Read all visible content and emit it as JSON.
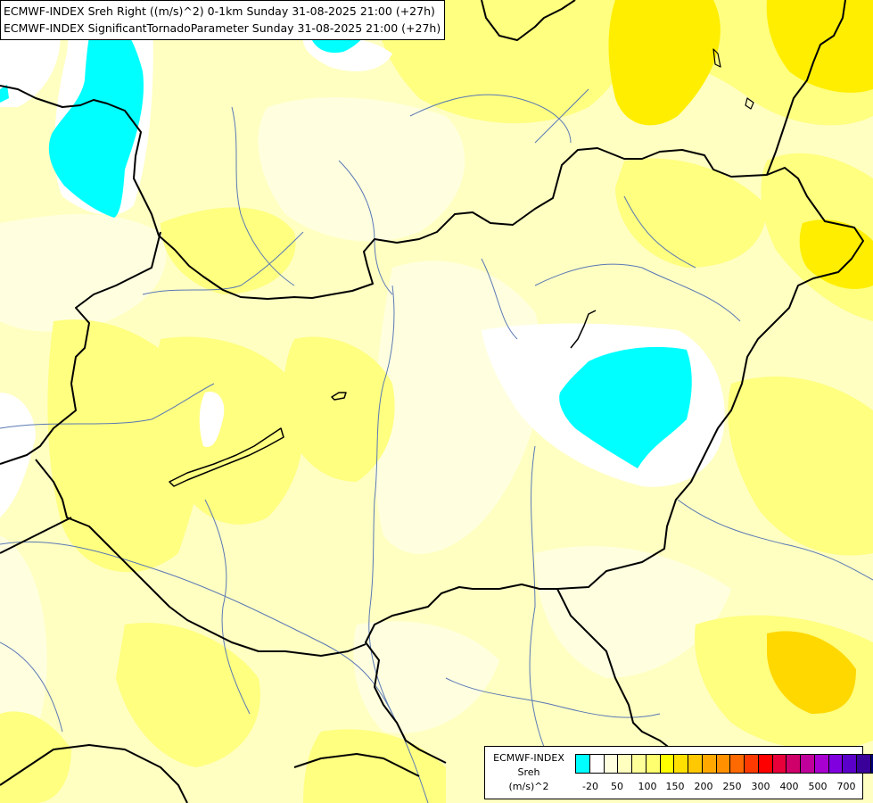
{
  "title": {
    "line1": "ECMWF-INDEX Sreh Right ((m/s)^2) 0-1km Sunday 31-08-2025 21:00 (+27h)",
    "line2": "ECMWF-INDEX SignificantTornadoParameter Sunday 31-08-2025 21:00 (+27h)"
  },
  "legend": {
    "source": "ECMWF-INDEX",
    "variable": "Sreh",
    "unit": "(m/s)^2",
    "colors": [
      "#00ffff",
      "#ffffff",
      "#ffffe0",
      "#ffffc0",
      "#ffff9a",
      "#ffff70",
      "#ffff00",
      "#ffe000",
      "#ffc800",
      "#ffa800",
      "#ff9000",
      "#ff6a00",
      "#ff3a00",
      "#ff0000",
      "#e8003a",
      "#d0006a",
      "#c0009a",
      "#a800d0",
      "#8000e0",
      "#5a00c8",
      "#3a009a",
      "#000080"
    ],
    "ticks": [
      "-20",
      "50",
      "100",
      "150",
      "200",
      "250",
      "300",
      "400",
      "500",
      "700"
    ]
  },
  "map_colors": {
    "background": "#ffffe0",
    "light_yellow": "#ffff9a",
    "yellow": "#ffff50",
    "strong_yellow": "#ffe800",
    "cyan": "#00ffff",
    "white": "#ffffff",
    "border": "#000000",
    "river": "#5a78b4"
  }
}
